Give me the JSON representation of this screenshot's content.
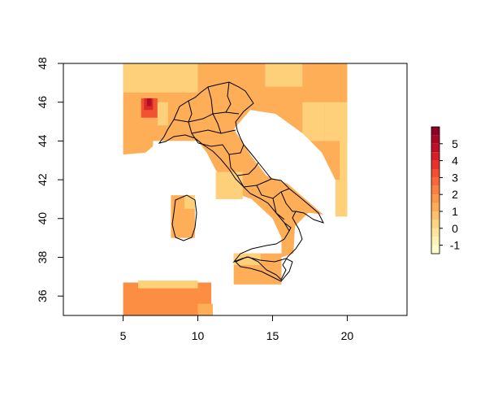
{
  "map": {
    "x_axis": {
      "range": [
        1,
        24
      ],
      "ticks": [
        5,
        10,
        15,
        20
      ]
    },
    "y_axis": {
      "range": [
        35,
        48
      ],
      "ticks": [
        36,
        38,
        40,
        42,
        44,
        46,
        48
      ]
    },
    "legend": {
      "placement": "right",
      "levels": [
        {
          "from": -1.5,
          "to": -1.0,
          "color": "#FFFFCC"
        },
        {
          "from": -1.0,
          "to": -0.5,
          "color": "#FFF3B3"
        },
        {
          "from": -0.5,
          "to": 0.0,
          "color": "#FFE59B"
        },
        {
          "from": 0.0,
          "to": 0.5,
          "color": "#FED481"
        },
        {
          "from": 0.5,
          "to": 1.0,
          "color": "#FEC06A"
        },
        {
          "from": 1.0,
          "to": 1.5,
          "color": "#FEAA57"
        },
        {
          "from": 1.5,
          "to": 2.0,
          "color": "#FD9649"
        },
        {
          "from": 2.0,
          "to": 2.5,
          "color": "#FC8140"
        },
        {
          "from": 2.5,
          "to": 3.0,
          "color": "#F9673A"
        },
        {
          "from": 3.0,
          "to": 3.5,
          "color": "#F34D32"
        },
        {
          "from": 3.5,
          "to": 4.0,
          "color": "#E8332A"
        },
        {
          "from": 4.0,
          "to": 4.5,
          "color": "#D61F26"
        },
        {
          "from": 4.5,
          "to": 5.0,
          "color": "#C20D27"
        },
        {
          "from": 5.0,
          "to": 5.5,
          "color": "#AA0426"
        },
        {
          "from": 5.5,
          "to": 6.0,
          "color": "#8F0026"
        }
      ],
      "ticks": [
        -1,
        0,
        1,
        2,
        3,
        4,
        5
      ]
    },
    "colors": {
      "light": "#FED07A",
      "mid": "#FDAE56",
      "dark": "#FB8E43",
      "hot": "#F0532F",
      "hotter": "#D9282A",
      "hottest": "#B40D27"
    }
  }
}
